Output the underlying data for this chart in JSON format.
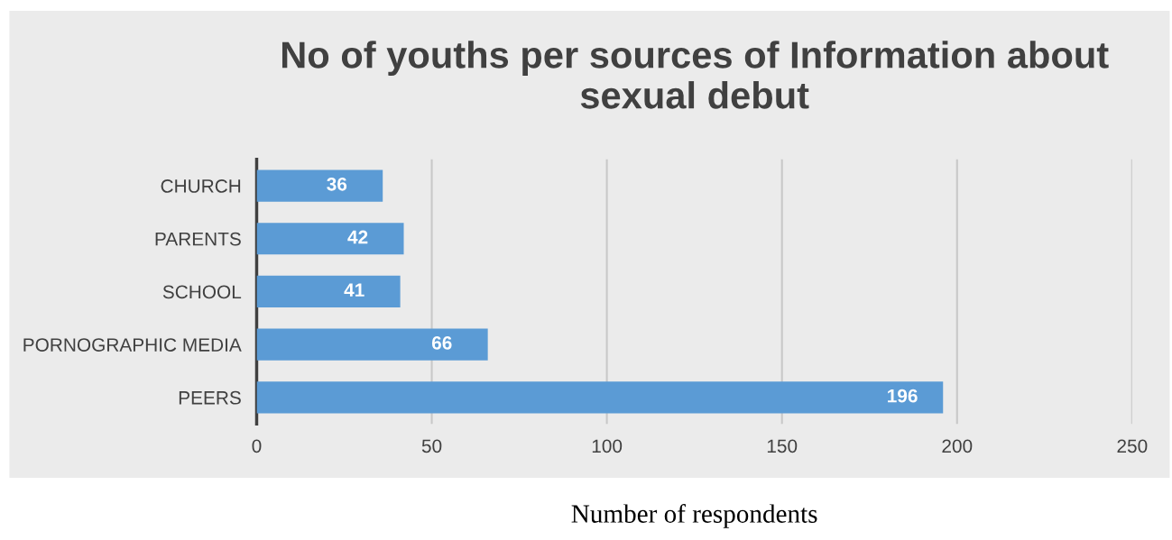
{
  "chart_data": {
    "type": "bar",
    "orientation": "horizontal",
    "title": "No of youths per sources of Information about sexual debut",
    "xlabel": "Number of respondents",
    "categories": [
      "CHURCH",
      "PARENTS",
      "SCHOOL",
      "PORNOGRAPHIC MEDIA",
      "PEERS"
    ],
    "values": [
      36,
      42,
      41,
      66,
      196
    ],
    "color": "#5b9bd5",
    "xlim": [
      0,
      250
    ],
    "xticks": [
      0,
      50,
      100,
      150,
      200,
      250
    ],
    "grid": "x",
    "data_labels": true,
    "legend": false
  }
}
